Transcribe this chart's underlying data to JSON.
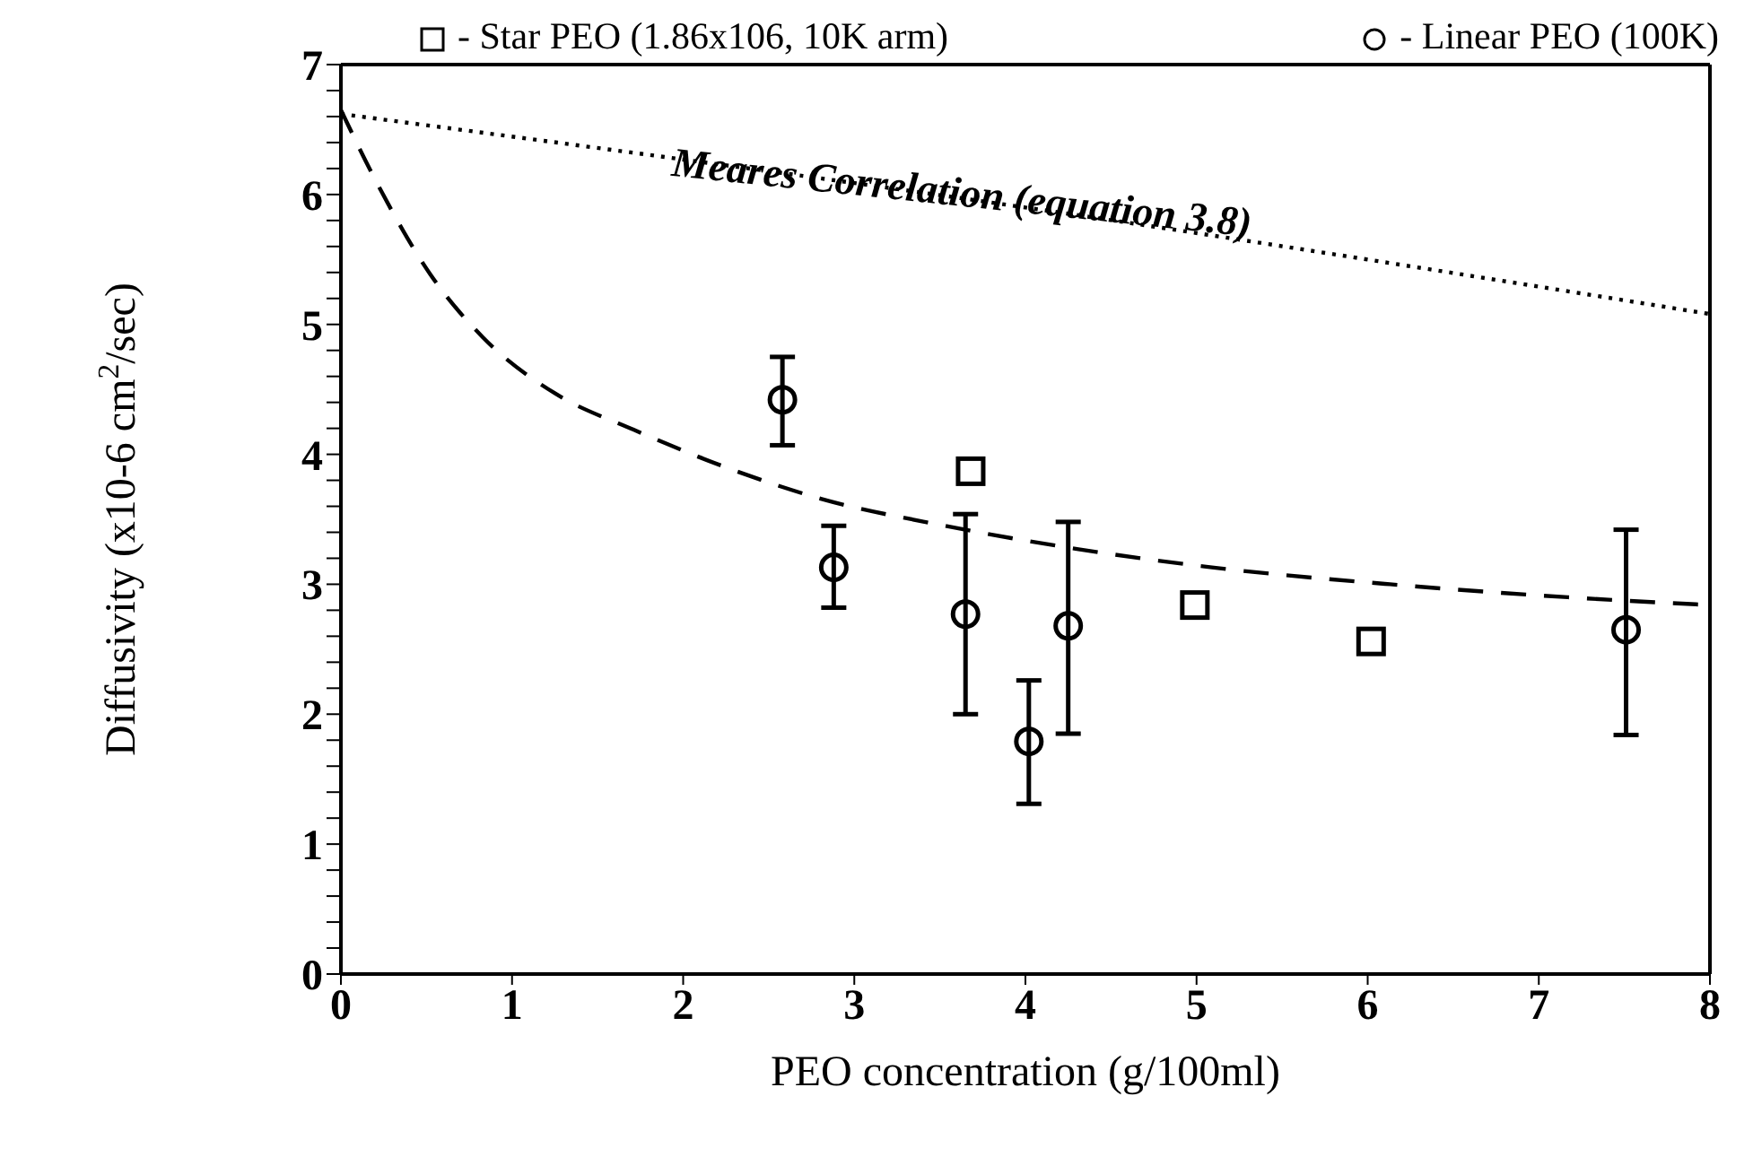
{
  "chart_data": {
    "type": "scatter",
    "xlabel": "PEO concentration (g/100ml)",
    "ylabel": "Diffusivity (x10-6 cm$^{2}$/sec)",
    "xlim": [
      0,
      8
    ],
    "xticks": [
      0,
      1,
      2,
      3,
      4,
      5,
      6,
      7,
      8
    ],
    "ylim": [
      0,
      7
    ],
    "yticks": [
      0,
      {
        "value": 0.2,
        "label": null
      },
      {
        "value": 0.4,
        "label": null
      },
      {
        "value": 0.6,
        "label": null
      },
      {
        "value": 0.8,
        "label": null
      },
      1,
      {
        "value": 1.2,
        "label": null
      },
      {
        "value": 1.4,
        "label": null
      },
      {
        "value": 1.6,
        "label": null
      },
      {
        "value": 1.8,
        "label": null
      },
      2,
      {
        "value": 2.2,
        "label": null
      },
      {
        "value": 2.4,
        "label": null
      },
      {
        "value": 2.6,
        "label": null
      },
      {
        "value": 2.8,
        "label": null
      },
      3,
      {
        "value": 3.2,
        "label": null
      },
      {
        "value": 3.4,
        "label": null
      },
      {
        "value": 3.6,
        "label": null
      },
      {
        "value": 3.8,
        "label": null
      },
      4,
      {
        "value": 4.2,
        "label": null
      },
      {
        "value": 4.4,
        "label": null
      },
      {
        "value": 4.6,
        "label": null
      },
      {
        "value": 4.8,
        "label": null
      },
      5,
      {
        "value": 5.2,
        "label": null
      },
      {
        "value": 5.4,
        "label": null
      },
      {
        "value": 5.6,
        "label": null
      },
      {
        "value": 5.8,
        "label": null
      },
      6,
      {
        "value": 6.2,
        "label": null
      },
      {
        "value": 6.4,
        "label": null
      },
      {
        "value": 6.6,
        "label": null
      },
      {
        "value": 6.8,
        "label": null
      },
      7
    ],
    "legend": "top",
    "annotations": [
      "Meares Correlation (equation 3.8)"
    ],
    "series": [
      {
        "name": "- Star PEO (1.86x106, 10K arm)",
        "marker": "square",
        "color": "#000000",
        "x": [
          3.68,
          4.99,
          6.02
        ],
        "values": [
          3.87,
          2.84,
          2.56
        ]
      },
      {
        "name": "- Linear PEO (100K)",
        "marker": "circle",
        "color": "#000000",
        "x": [
          2.58,
          2.88,
          3.65,
          4.02,
          4.25,
          7.51
        ],
        "values": [
          4.42,
          3.13,
          2.77,
          1.79,
          2.68,
          2.65
        ],
        "errors": [
          [
            4.07,
            4.75
          ],
          [
            2.82,
            3.45
          ],
          [
            2.0,
            3.54
          ],
          [
            1.31,
            2.26
          ],
          [
            1.85,
            3.48
          ],
          [
            1.84,
            3.42
          ]
        ]
      },
      {
        "type": "line",
        "line_style": "dashed",
        "marker": "none",
        "color": "#000000",
        "x": [
          0,
          0.21,
          0.52,
          0.83,
          1.25,
          1.71,
          2.23,
          2.8,
          3.53,
          4.31,
          5.09,
          6.13,
          7.17,
          8
        ],
        "values": [
          6.65,
          6.09,
          5.39,
          4.9,
          4.47,
          4.19,
          3.91,
          3.66,
          3.45,
          3.27,
          3.13,
          3.0,
          2.9,
          2.84
        ]
      },
      {
        "type": "line",
        "line_style": "dotted",
        "marker": "none",
        "color": "#000000",
        "x": [
          0,
          4,
          8
        ],
        "values": [
          6.62,
          5.9,
          5.08
        ]
      }
    ]
  }
}
